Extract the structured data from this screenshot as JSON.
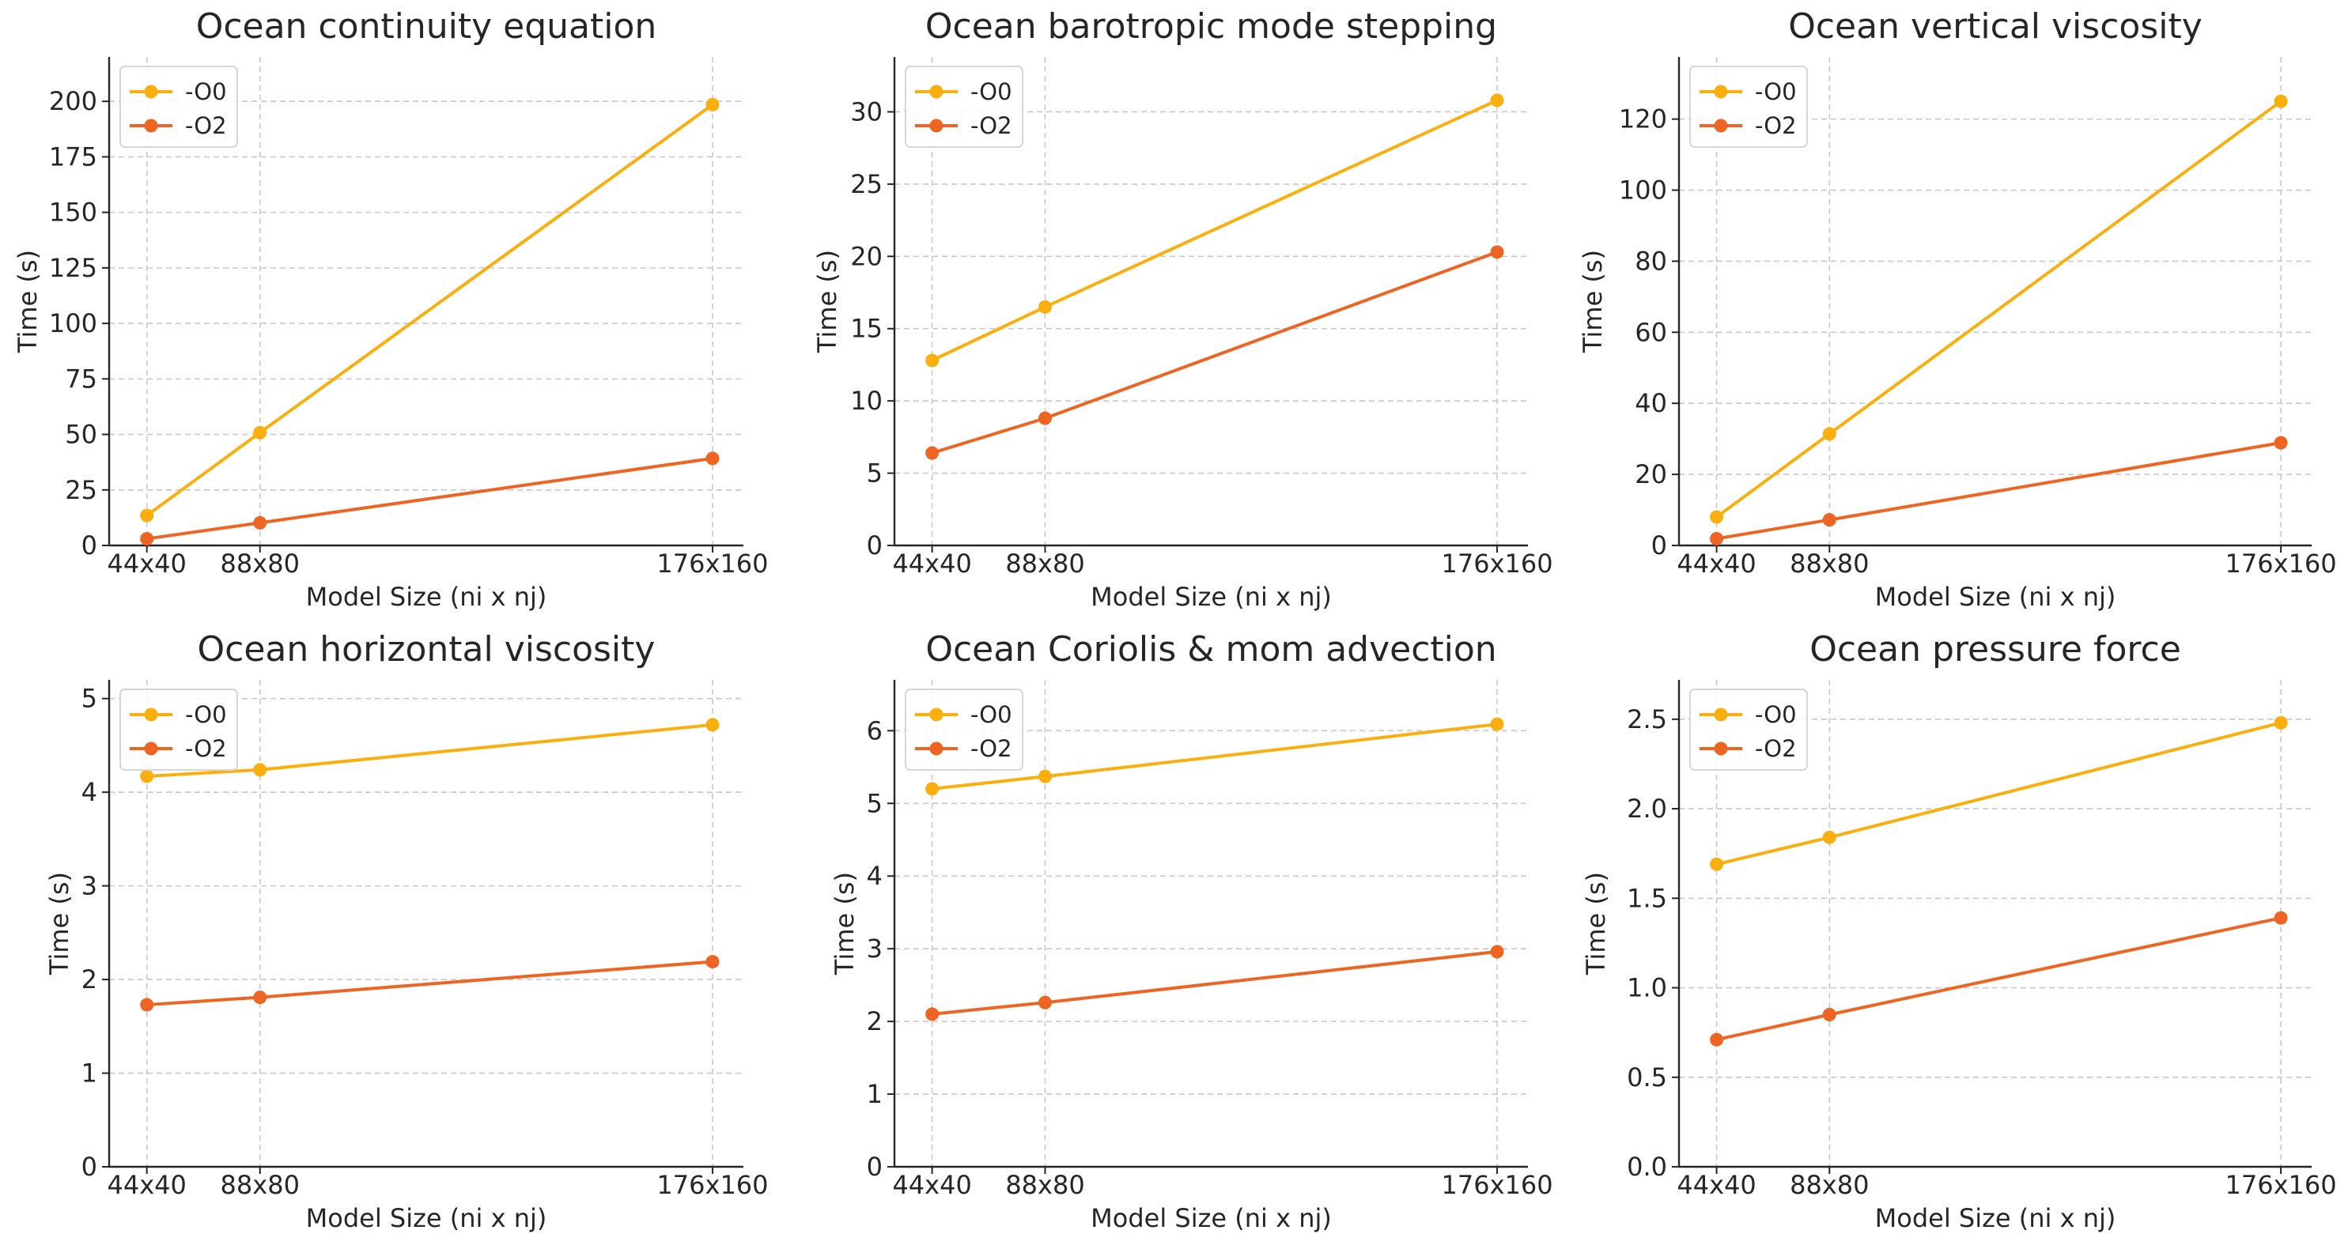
{
  "colors": {
    "o0": "#FBAF0F",
    "o2": "#EE6422",
    "text": "#262626",
    "grid": "#c8c8c8"
  },
  "chart_data": [
    {
      "type": "line",
      "title": "Ocean continuity equation",
      "xlabel": "Model Size (ni x nj)",
      "ylabel": "Time (s)",
      "categories": [
        "44x40",
        "88x80",
        "176x160"
      ],
      "x": [
        1760,
        7040,
        28160
      ],
      "series": [
        {
          "name": "-O0",
          "values": [
            13.5,
            50.8,
            198.5
          ]
        },
        {
          "name": "-O2",
          "values": [
            3.0,
            10.2,
            39.2
          ]
        }
      ],
      "ylim": [
        0,
        220
      ],
      "yticks": [
        0,
        25,
        50,
        75,
        100,
        125,
        150,
        175,
        200
      ],
      "ytick_labels": [
        "0",
        "25",
        "50",
        "75",
        "100",
        "125",
        "150",
        "175",
        "200"
      ],
      "grid": true,
      "legend_position": "top-left"
    },
    {
      "type": "line",
      "title": "Ocean barotropic mode stepping",
      "xlabel": "Model Size (ni x nj)",
      "ylabel": "Time (s)",
      "categories": [
        "44x40",
        "88x80",
        "176x160"
      ],
      "x": [
        1760,
        7040,
        28160
      ],
      "series": [
        {
          "name": "-O0",
          "values": [
            12.8,
            16.5,
            30.8
          ]
        },
        {
          "name": "-O2",
          "values": [
            6.4,
            8.8,
            20.3
          ]
        }
      ],
      "ylim": [
        0,
        33.8
      ],
      "yticks": [
        0,
        5,
        10,
        15,
        20,
        25,
        30
      ],
      "ytick_labels": [
        "0",
        "5",
        "10",
        "15",
        "20",
        "25",
        "30"
      ],
      "grid": true,
      "legend_position": "top-left"
    },
    {
      "type": "line",
      "title": "Ocean vertical viscosity",
      "xlabel": "Model Size (ni x nj)",
      "ylabel": "Time (s)",
      "categories": [
        "44x40",
        "88x80",
        "176x160"
      ],
      "x": [
        1760,
        7040,
        28160
      ],
      "series": [
        {
          "name": "-O0",
          "values": [
            8.0,
            31.4,
            125.0
          ]
        },
        {
          "name": "-O2",
          "values": [
            1.9,
            7.2,
            28.9
          ]
        }
      ],
      "ylim": [
        0,
        137.5
      ],
      "yticks": [
        0,
        20,
        40,
        60,
        80,
        100,
        120
      ],
      "ytick_labels": [
        "0",
        "20",
        "40",
        "60",
        "80",
        "100",
        "120"
      ],
      "grid": true,
      "legend_position": "top-left"
    },
    {
      "type": "line",
      "title": "Ocean horizontal viscosity",
      "xlabel": "Model Size (ni x nj)",
      "ylabel": "Time (s)",
      "categories": [
        "44x40",
        "88x80",
        "176x160"
      ],
      "x": [
        1760,
        7040,
        28160
      ],
      "series": [
        {
          "name": "-O0",
          "values": [
            4.17,
            4.24,
            4.72
          ]
        },
        {
          "name": "-O2",
          "values": [
            1.73,
            1.81,
            2.19
          ]
        }
      ],
      "ylim": [
        0,
        5.2
      ],
      "yticks": [
        0,
        1,
        2,
        3,
        4,
        5
      ],
      "ytick_labels": [
        "0",
        "1",
        "2",
        "3",
        "4",
        "5"
      ],
      "grid": true,
      "legend_position": "top-left"
    },
    {
      "type": "line",
      "title": "Ocean Coriolis & mom advection",
      "xlabel": "Model Size (ni x nj)",
      "ylabel": "Time (s)",
      "categories": [
        "44x40",
        "88x80",
        "176x160"
      ],
      "x": [
        1760,
        7040,
        28160
      ],
      "series": [
        {
          "name": "-O0",
          "values": [
            5.2,
            5.37,
            6.09
          ]
        },
        {
          "name": "-O2",
          "values": [
            2.1,
            2.26,
            2.96
          ]
        }
      ],
      "ylim": [
        0,
        6.7
      ],
      "yticks": [
        0,
        1,
        2,
        3,
        4,
        5,
        6
      ],
      "ytick_labels": [
        "0",
        "1",
        "2",
        "3",
        "4",
        "5",
        "6"
      ],
      "grid": true,
      "legend_position": "top-left"
    },
    {
      "type": "line",
      "title": "Ocean pressure force",
      "xlabel": "Model Size (ni x nj)",
      "ylabel": "Time (s)",
      "categories": [
        "44x40",
        "88x80",
        "176x160"
      ],
      "x": [
        1760,
        7040,
        28160
      ],
      "series": [
        {
          "name": "-O0",
          "values": [
            1.69,
            1.84,
            2.48
          ]
        },
        {
          "name": "-O2",
          "values": [
            0.71,
            0.85,
            1.39
          ]
        }
      ],
      "ylim": [
        0,
        2.72
      ],
      "yticks": [
        0,
        0.5,
        1.0,
        1.5,
        2.0,
        2.5
      ],
      "ytick_labels": [
        "0.0",
        "0.5",
        "1.0",
        "1.5",
        "2.0",
        "2.5"
      ],
      "grid": true,
      "legend_position": "top-left"
    }
  ]
}
